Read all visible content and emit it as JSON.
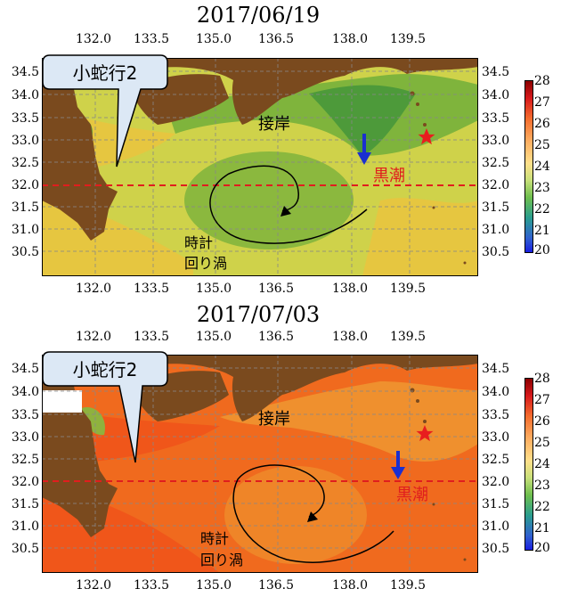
{
  "panels": [
    {
      "title": "2017/06/19",
      "callout": "小蛇行2",
      "coast_label": "接岸",
      "kuroshio_label": "黒潮",
      "eddy_label_1": "時計",
      "eddy_label_2": "回り渦",
      "colors": {
        "sea_main": "#cfd24a",
        "sea_warm": "#e6c640",
        "sea_cool": "#7fb43c",
        "sea_cold": "#4d9a3a",
        "land": "#7a4a1e"
      }
    },
    {
      "title": "2017/07/03",
      "callout": "小蛇行2",
      "coast_label": "接岸",
      "kuroshio_label": "黒潮",
      "eddy_label_1": "時計",
      "eddy_label_2": "回り渦",
      "colors": {
        "sea_main": "#f06a1e",
        "sea_warm": "#f0561a",
        "sea_cool": "#ef9a32",
        "sea_cold": "#8fb23e",
        "land": "#7a4a1e"
      }
    }
  ],
  "lon_ticks": [
    "132.0",
    "133.5",
    "135.0",
    "136.5",
    "138.0",
    "139.5"
  ],
  "lat_ticks_top": [
    "34.5",
    "34.0",
    "33.5",
    "33.0",
    "32.5",
    "32.0",
    "31.5",
    "31.0",
    "30.5"
  ],
  "lat_ticks_bottom": [
    "34.5",
    "34.0",
    "33.5",
    "33.0",
    "32.5",
    "32.0",
    "31.5",
    "31.0",
    "30.5"
  ],
  "colorbar": {
    "ticks": [
      "28",
      "27",
      "26",
      "25",
      "24",
      "23",
      "22",
      "21",
      "20"
    ],
    "min": 20,
    "max": 28
  },
  "markers": {
    "star_color": "#e81e1e",
    "arrow_color": "#1a2fd0",
    "dash_color": "#e01e1e"
  }
}
